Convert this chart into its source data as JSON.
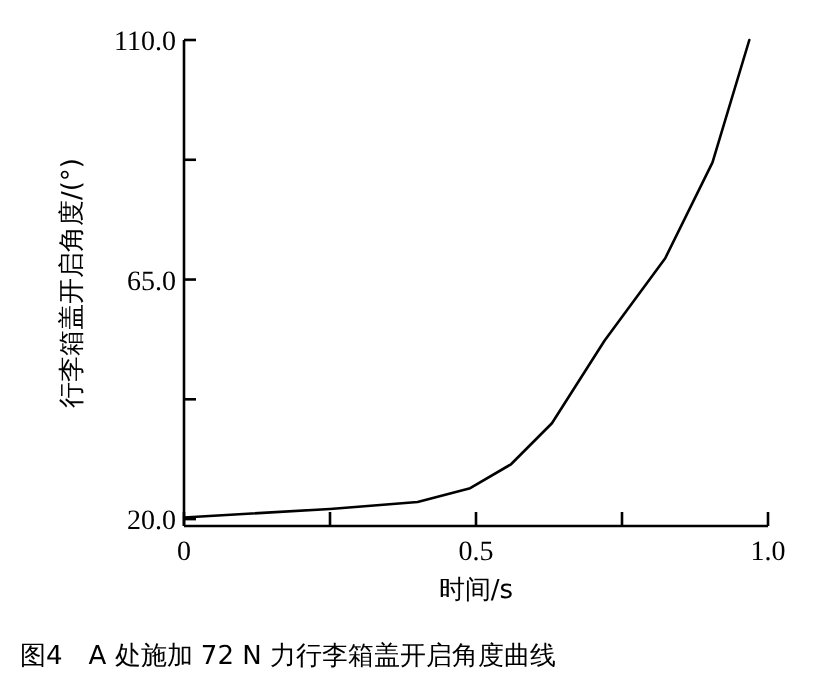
{
  "chart_data": {
    "type": "line",
    "xlabel": "时间/s",
    "ylabel": "行李箱盖开启角度/(°)",
    "annotations": [
      "图4　A 处施加 72 N 力行李箱盖开启角度曲线"
    ],
    "x": [
      0,
      0.25,
      0.4,
      0.49,
      0.56,
      0.63,
      0.72,
      0.824,
      0.905,
      0.968
    ],
    "values": [
      20.3,
      21.9,
      23.2,
      25.8,
      30.3,
      38.0,
      53.5,
      69.0,
      87.0,
      110.0
    ],
    "color": "#000000",
    "xlim": [
      0,
      1.0
    ],
    "ylim": [
      18.7,
      110
    ],
    "xticks": [
      {
        "value": 0,
        "label": "0"
      },
      {
        "value": 0.25,
        "label": null
      },
      {
        "value": 0.5,
        "label": "0.5"
      },
      {
        "value": 0.75,
        "label": null
      },
      {
        "value": 1.0,
        "label": "1.0"
      }
    ],
    "yticks": [
      {
        "value": 20,
        "label": "20.0"
      },
      {
        "value": 42.5,
        "label": null
      },
      {
        "value": 65,
        "label": "65.0"
      },
      {
        "value": 87.5,
        "label": null
      },
      {
        "value": 110,
        "label": "110.0"
      }
    ]
  }
}
